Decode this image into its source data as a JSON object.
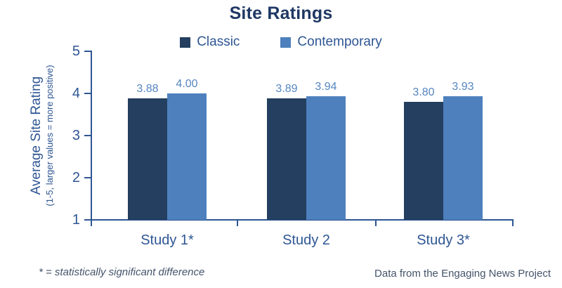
{
  "title": "Site Ratings",
  "chart_data": {
    "type": "bar",
    "title": "Site Ratings",
    "categories": [
      "Study 1*",
      "Study 2",
      "Study 3*"
    ],
    "series": [
      {
        "name": "Classic",
        "color": "#243F5F",
        "values": [
          3.88,
          3.89,
          3.8
        ]
      },
      {
        "name": "Contemporary",
        "color": "#4E80BD",
        "values": [
          4.0,
          3.94,
          3.93
        ]
      }
    ],
    "ylabel": "Average Site Rating",
    "ylabel_sub": "(1-5, larger values = more positive)",
    "xlabel": "",
    "ylim": [
      1,
      5
    ],
    "yticks": [
      5,
      4,
      3,
      2,
      1
    ],
    "grid": false,
    "legend_position": "top-center",
    "data_labels": "two-decimal values above each bar"
  },
  "footnotes": {
    "significance": "* = statistically significant difference",
    "source": "Data from the Engaging News Project"
  },
  "colors": {
    "title_text": "#1F3864",
    "axis_and_labels": "#2E5693",
    "data_label_text": "#5586C1",
    "footnote_text": "#44546A",
    "background": "#FFFFFF"
  }
}
